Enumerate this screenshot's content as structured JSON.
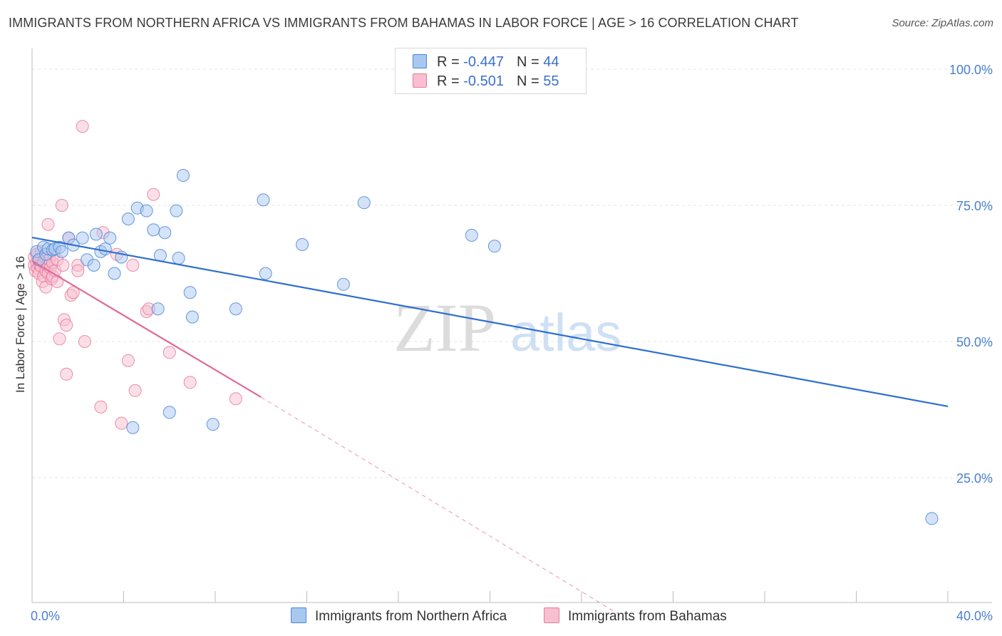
{
  "title": "IMMIGRANTS FROM NORTHERN AFRICA VS IMMIGRANTS FROM BAHAMAS IN LABOR FORCE | AGE > 16 CORRELATION CHART",
  "source": "Source: ZipAtlas.com",
  "watermark": {
    "zip": "ZIP",
    "atlas": "atlas"
  },
  "legend": {
    "rows": [
      {
        "r_label": "R = ",
        "r_value": "-0.447",
        "n_label": "N = ",
        "n_value": "44"
      },
      {
        "r_label": "R = ",
        "r_value": "-0.501",
        "n_label": "N = ",
        "n_value": "55"
      }
    ]
  },
  "colors": {
    "blue_fill": "#a9c8f0",
    "blue_stroke": "#4a86d8",
    "blue_line": "#2f6fd0",
    "pink_fill": "#f7bfd0",
    "pink_stroke": "#e87aa0",
    "pink_line": "#e06a98",
    "grid": "#e4e4e4",
    "axis_text": "#4a7fd0"
  },
  "chart_data": {
    "type": "scatter",
    "title": "IMMIGRANTS FROM NORTHERN AFRICA VS IMMIGRANTS FROM BAHAMAS IN LABOR FORCE | AGE > 16 CORRELATION CHART",
    "xlabel": "",
    "ylabel": "In Labor Force | Age > 16",
    "xlim": [
      0,
      40
    ],
    "ylim": [
      0,
      100
    ],
    "x_tick_labels": [
      "0.0%",
      "40.0%"
    ],
    "y_ticks": [
      25,
      50,
      75,
      100
    ],
    "y_tick_labels": [
      "25.0%",
      "50.0%",
      "75.0%",
      "100.0%"
    ],
    "series": [
      {
        "name": "Immigrants from Northern Africa",
        "color": "blue",
        "trend": {
          "x": [
            0,
            40
          ],
          "y": [
            69.1,
            38.1
          ],
          "style": "solid"
        },
        "points": [
          [
            0.2,
            66.5
          ],
          [
            0.3,
            65.0
          ],
          [
            0.5,
            67.3
          ],
          [
            0.6,
            66.0
          ],
          [
            0.7,
            67.0
          ],
          [
            0.9,
            66.8
          ],
          [
            1.0,
            67.0
          ],
          [
            1.2,
            67.3
          ],
          [
            1.3,
            66.5
          ],
          [
            1.6,
            69.0
          ],
          [
            1.8,
            67.7
          ],
          [
            2.2,
            69.0
          ],
          [
            2.4,
            65.0
          ],
          [
            2.7,
            64.0
          ],
          [
            2.8,
            69.7
          ],
          [
            3.0,
            66.5
          ],
          [
            3.2,
            67.0
          ],
          [
            3.4,
            69.0
          ],
          [
            3.6,
            62.5
          ],
          [
            3.9,
            65.5
          ],
          [
            4.2,
            72.5
          ],
          [
            4.6,
            74.5
          ],
          [
            5.0,
            74.0
          ],
          [
            5.3,
            70.5
          ],
          [
            5.5,
            56.0
          ],
          [
            5.6,
            65.8
          ],
          [
            5.8,
            70.0
          ],
          [
            6.0,
            37.0
          ],
          [
            6.3,
            74.0
          ],
          [
            6.4,
            65.3
          ],
          [
            6.6,
            80.5
          ],
          [
            6.9,
            59.0
          ],
          [
            7.0,
            54.5
          ],
          [
            7.9,
            34.8
          ],
          [
            8.9,
            56.0
          ],
          [
            10.1,
            76.0
          ],
          [
            10.2,
            62.5
          ],
          [
            11.8,
            67.8
          ],
          [
            13.6,
            60.5
          ],
          [
            14.5,
            75.5
          ],
          [
            19.2,
            69.5
          ],
          [
            20.2,
            67.5
          ],
          [
            39.3,
            17.5
          ],
          [
            4.4,
            34.2
          ]
        ]
      },
      {
        "name": "Immigrants from Bahamas",
        "color": "pink",
        "trend": {
          "x": [
            0,
            10.0
          ],
          "y": [
            64.8,
            39.8
          ],
          "style": "solid",
          "dashed_to": {
            "x": 25.6,
            "y": 0
          }
        },
        "points": [
          [
            0.1,
            64.0
          ],
          [
            0.1,
            65.5
          ],
          [
            0.15,
            63.0
          ],
          [
            0.2,
            66.0
          ],
          [
            0.2,
            64.5
          ],
          [
            0.25,
            63.5
          ],
          [
            0.3,
            65.0
          ],
          [
            0.3,
            62.5
          ],
          [
            0.35,
            64.0
          ],
          [
            0.4,
            66.5
          ],
          [
            0.4,
            63.8
          ],
          [
            0.45,
            61.0
          ],
          [
            0.5,
            64.5
          ],
          [
            0.5,
            62.0
          ],
          [
            0.55,
            65.5
          ],
          [
            0.6,
            63.0
          ],
          [
            0.6,
            60.0
          ],
          [
            0.65,
            64.0
          ],
          [
            0.7,
            71.5
          ],
          [
            0.7,
            62.5
          ],
          [
            0.75,
            65.0
          ],
          [
            0.8,
            63.5
          ],
          [
            0.85,
            61.5
          ],
          [
            0.9,
            64.5
          ],
          [
            0.9,
            62.0
          ],
          [
            0.95,
            66.0
          ],
          [
            1.0,
            63.0
          ],
          [
            1.1,
            65.0
          ],
          [
            1.1,
            61.0
          ],
          [
            1.2,
            50.5
          ],
          [
            1.3,
            75.0
          ],
          [
            1.35,
            64.0
          ],
          [
            1.4,
            54.0
          ],
          [
            1.5,
            53.0
          ],
          [
            1.5,
            44.0
          ],
          [
            1.6,
            69.0
          ],
          [
            1.7,
            58.5
          ],
          [
            1.8,
            59.0
          ],
          [
            2.0,
            64.0
          ],
          [
            2.2,
            89.5
          ],
          [
            2.3,
            50.0
          ],
          [
            3.0,
            38.0
          ],
          [
            3.1,
            70.0
          ],
          [
            3.7,
            66.0
          ],
          [
            3.9,
            35.0
          ],
          [
            4.2,
            46.5
          ],
          [
            4.4,
            64.0
          ],
          [
            4.5,
            41.0
          ],
          [
            5.0,
            55.5
          ],
          [
            5.1,
            56.0
          ],
          [
            5.3,
            77.0
          ],
          [
            6.0,
            48.0
          ],
          [
            6.9,
            42.5
          ],
          [
            8.9,
            39.5
          ],
          [
            2.0,
            63.0
          ]
        ]
      }
    ]
  },
  "bottom_legend": [
    {
      "label": "Immigrants from Northern Africa"
    },
    {
      "label": "Immigrants from Bahamas"
    }
  ]
}
